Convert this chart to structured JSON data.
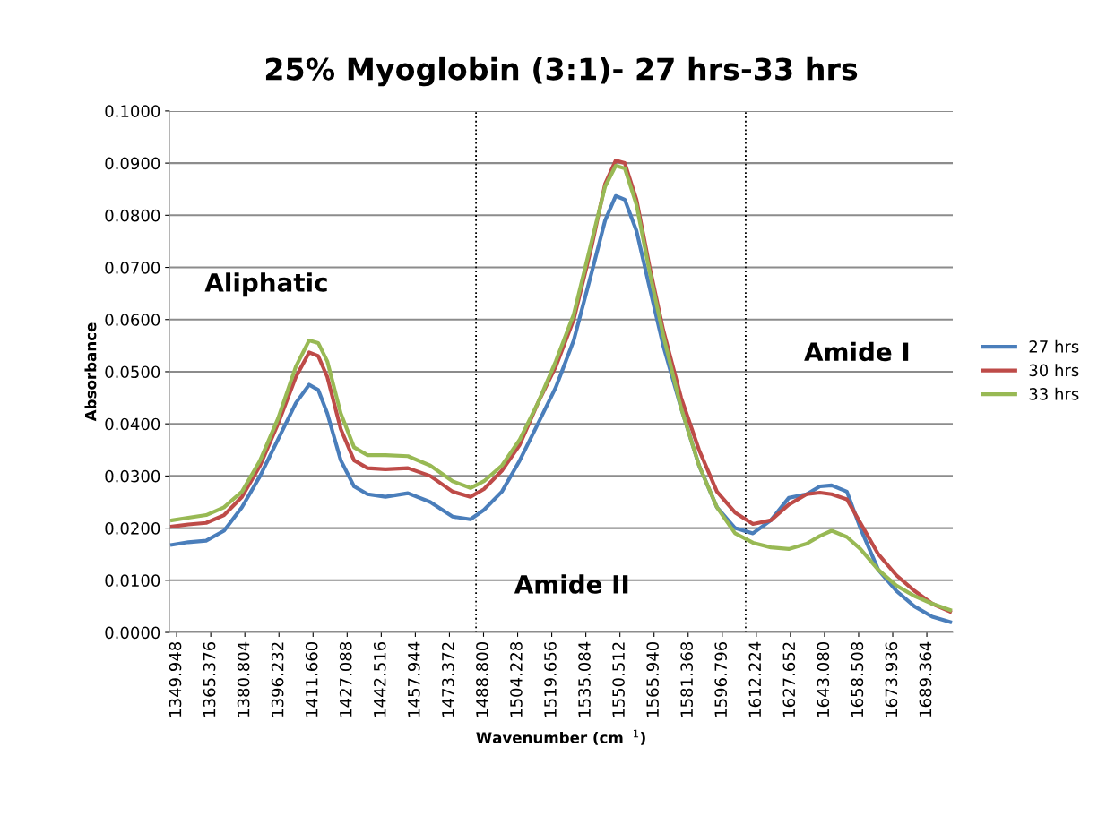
{
  "chart_data": {
    "type": "line",
    "title": "25% Myoglobin (3:1)- 27 hrs-33 hrs",
    "xlabel": "Wavenumber (cm$^{−1}$)",
    "ylabel": "Absorbance",
    "x": [
      1347.9,
      1355.2,
      1363.3,
      1371.4,
      1379.5,
      1387.7,
      1395.8,
      1403.9,
      1409.9,
      1414.0,
      1418.1,
      1424.2,
      1430.2,
      1436.3,
      1444.4,
      1454.6,
      1464.7,
      1474.8,
      1482.9,
      1489.0,
      1497.1,
      1505.2,
      1513.4,
      1521.5,
      1529.6,
      1537.7,
      1543.8,
      1548.6,
      1552.7,
      1558.0,
      1564.0,
      1570.1,
      1578.2,
      1586.3,
      1594.4,
      1602.6,
      1610.7,
      1618.8,
      1626.9,
      1635.0,
      1641.0,
      1646.3,
      1653.2,
      1659.3,
      1667.4,
      1675.5,
      1683.7,
      1691.8,
      1699.9
    ],
    "series": [
      {
        "name": "27 hrs",
        "color": "#4a7ebb",
        "values": [
          0.0168,
          0.0173,
          0.0176,
          0.0195,
          0.024,
          0.03,
          0.037,
          0.044,
          0.0475,
          0.0465,
          0.042,
          0.033,
          0.028,
          0.0265,
          0.026,
          0.0267,
          0.025,
          0.0222,
          0.0217,
          0.0235,
          0.027,
          0.033,
          0.04,
          0.047,
          0.056,
          0.069,
          0.079,
          0.0837,
          0.083,
          0.077,
          0.066,
          0.055,
          0.043,
          0.032,
          0.024,
          0.02,
          0.019,
          0.0215,
          0.0258,
          0.0265,
          0.028,
          0.0282,
          0.027,
          0.02,
          0.012,
          0.008,
          0.005,
          0.003,
          0.002
        ]
      },
      {
        "name": "30 hrs",
        "color": "#be4b48",
        "values": [
          0.0203,
          0.0207,
          0.021,
          0.0225,
          0.026,
          0.032,
          0.04,
          0.049,
          0.0537,
          0.053,
          0.049,
          0.039,
          0.033,
          0.0315,
          0.0313,
          0.0315,
          0.03,
          0.027,
          0.026,
          0.0275,
          0.031,
          0.036,
          0.044,
          0.051,
          0.06,
          0.074,
          0.086,
          0.0905,
          0.09,
          0.083,
          0.07,
          0.058,
          0.045,
          0.035,
          0.027,
          0.023,
          0.0208,
          0.0215,
          0.0245,
          0.0265,
          0.0268,
          0.0265,
          0.0255,
          0.021,
          0.015,
          0.011,
          0.008,
          0.0055,
          0.004
        ]
      },
      {
        "name": "33 hrs",
        "color": "#98b954",
        "values": [
          0.0215,
          0.022,
          0.0225,
          0.024,
          0.027,
          0.033,
          0.041,
          0.051,
          0.056,
          0.0555,
          0.052,
          0.042,
          0.0355,
          0.034,
          0.034,
          0.0338,
          0.032,
          0.029,
          0.0277,
          0.029,
          0.032,
          0.037,
          0.044,
          0.052,
          0.061,
          0.075,
          0.0855,
          0.0895,
          0.089,
          0.082,
          0.069,
          0.057,
          0.043,
          0.032,
          0.024,
          0.019,
          0.0172,
          0.0163,
          0.016,
          0.017,
          0.0185,
          0.0195,
          0.0183,
          0.016,
          0.012,
          0.009,
          0.007,
          0.0055,
          0.0043
        ]
      }
    ],
    "xlim": [
      1346.7,
      1701.1
    ],
    "xticks": [
      {
        "value": 1349.948,
        "label": "1349.948"
      },
      {
        "value": 1365.376,
        "label": "1365.376"
      },
      {
        "value": 1380.804,
        "label": "1380.804"
      },
      {
        "value": 1396.232,
        "label": "1396.232"
      },
      {
        "value": 1411.66,
        "label": "1411.660"
      },
      {
        "value": 1427.088,
        "label": "1427.088"
      },
      {
        "value": 1442.516,
        "label": "1442.516"
      },
      {
        "value": 1457.944,
        "label": "1457.944"
      },
      {
        "value": 1473.372,
        "label": "1473.372"
      },
      {
        "value": 1488.8,
        "label": "1488.800"
      },
      {
        "value": 1504.228,
        "label": "1504.228"
      },
      {
        "value": 1519.656,
        "label": "1519.656"
      },
      {
        "value": 1535.084,
        "label": "1535.084"
      },
      {
        "value": 1550.512,
        "label": "1550.512"
      },
      {
        "value": 1565.94,
        "label": "1565.940"
      },
      {
        "value": 1581.368,
        "label": "1581.368"
      },
      {
        "value": 1596.796,
        "label": "1596.796"
      },
      {
        "value": 1612.224,
        "label": "1612.224"
      },
      {
        "value": 1627.652,
        "label": "1627.652"
      },
      {
        "value": 1643.08,
        "label": "1643.080"
      },
      {
        "value": 1658.508,
        "label": "1658.508"
      },
      {
        "value": 1673.936,
        "label": "1673.936"
      },
      {
        "value": 1689.364,
        "label": "1689.364"
      }
    ],
    "ylim": [
      0,
      0.1
    ],
    "yticks": [
      {
        "value": 0,
        "label": "0.0000"
      },
      {
        "value": 0.01,
        "label": "0.0100"
      },
      {
        "value": 0.02,
        "label": "0.0200"
      },
      {
        "value": 0.03,
        "label": "0.0300"
      },
      {
        "value": 0.04,
        "label": "0.0400"
      },
      {
        "value": 0.05,
        "label": "0.0500"
      },
      {
        "value": 0.06,
        "label": "0.0600"
      },
      {
        "value": 0.07,
        "label": "0.0700"
      },
      {
        "value": 0.08,
        "label": "0.0800"
      },
      {
        "value": 0.09,
        "label": "0.0900"
      },
      {
        "value": 0.1,
        "label": "0.1000"
      }
    ],
    "ref_lines": [
      {
        "axis": "x",
        "value": 1485.4,
        "color": "#000000",
        "line_style": "dotted"
      },
      {
        "axis": "x",
        "value": 1607.4,
        "color": "#000000",
        "line_style": "dotted"
      }
    ],
    "annotations": [
      "Aliphatic",
      "Amide II",
      "Amide I"
    ],
    "grid": "y",
    "legend": "right",
    "marker": "none",
    "line_style": "solid"
  }
}
